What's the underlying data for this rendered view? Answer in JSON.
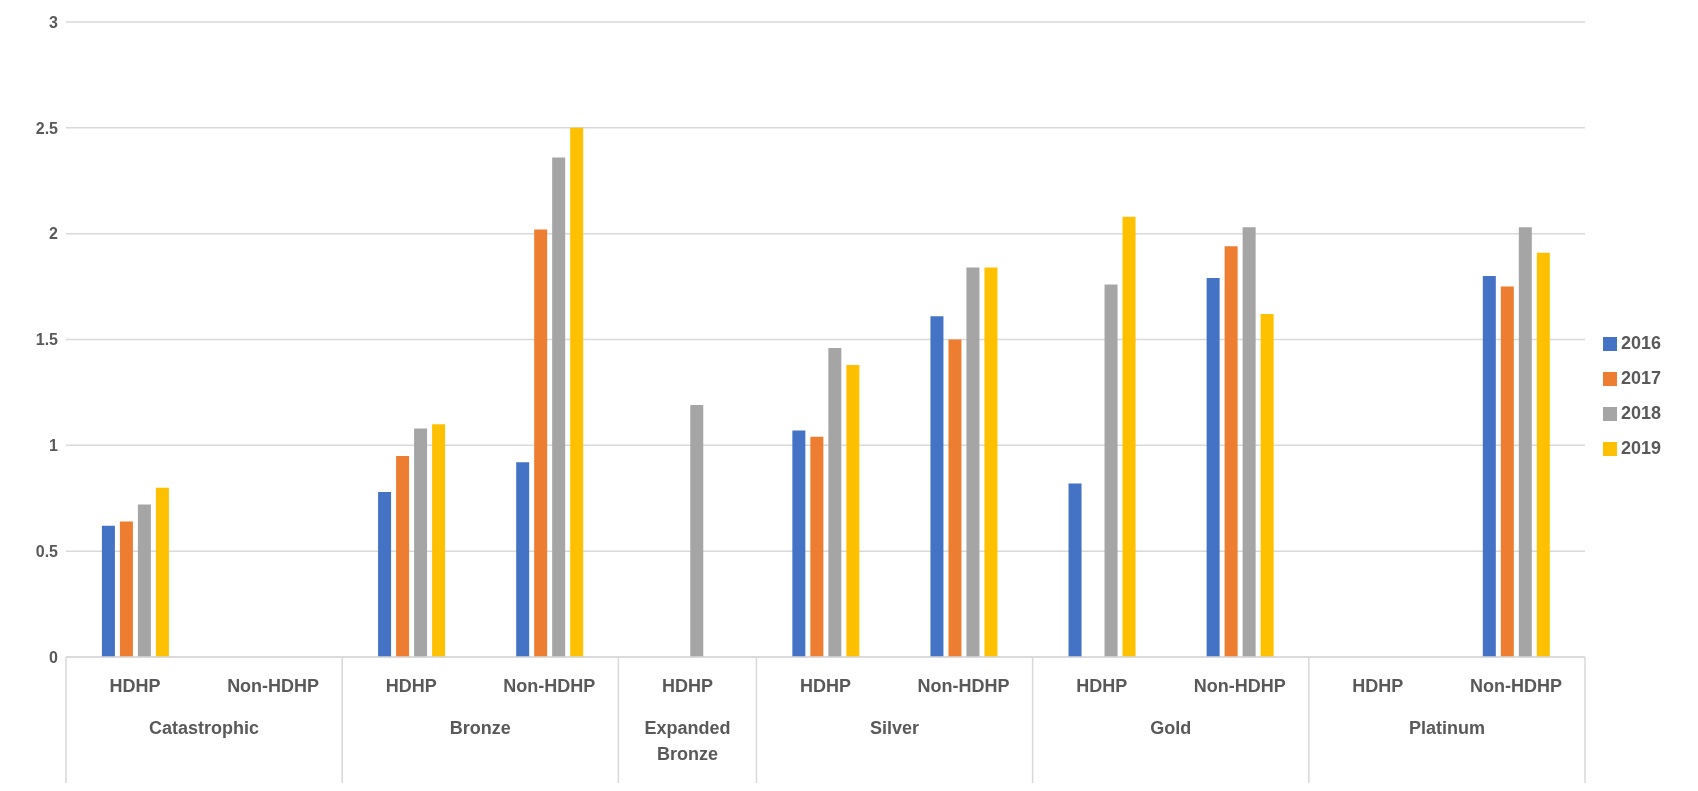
{
  "chart_data": {
    "type": "bar",
    "categories": [
      "HDHP",
      "Non-HDHP",
      "HDHP",
      "Non-HDHP",
      "HDHP",
      "HDHP",
      "Non-HDHP",
      "HDHP",
      "Non-HDHP",
      "HDHP",
      "Non-HDHP"
    ],
    "annotations": [
      "Catastrophic",
      "Bronze",
      "Expanded Bronze",
      "Silver",
      "Gold",
      "Platinum"
    ],
    "series": [
      {
        "name": "2016",
        "color": "#4472c4",
        "values": [
          0.62,
          null,
          0.78,
          0.92,
          null,
          1.07,
          1.61,
          0.82,
          1.79,
          null,
          1.8
        ]
      },
      {
        "name": "2017",
        "color": "#ed7d31",
        "values": [
          0.64,
          null,
          0.95,
          2.02,
          null,
          1.04,
          1.5,
          null,
          1.94,
          null,
          1.75
        ]
      },
      {
        "name": "2018",
        "color": "#a5a5a5",
        "values": [
          0.72,
          null,
          1.08,
          2.36,
          1.19,
          1.46,
          1.84,
          1.76,
          2.03,
          null,
          2.03
        ]
      },
      {
        "name": "2019",
        "color": "#ffc000",
        "values": [
          0.8,
          null,
          1.1,
          2.5,
          null,
          1.38,
          1.84,
          2.08,
          1.62,
          null,
          1.91
        ]
      }
    ],
    "ylim": [
      0,
      3
    ],
    "yticks": [
      0,
      0.5,
      1,
      1.5,
      2,
      2.5,
      3
    ],
    "grid": "y",
    "legend": "right"
  }
}
